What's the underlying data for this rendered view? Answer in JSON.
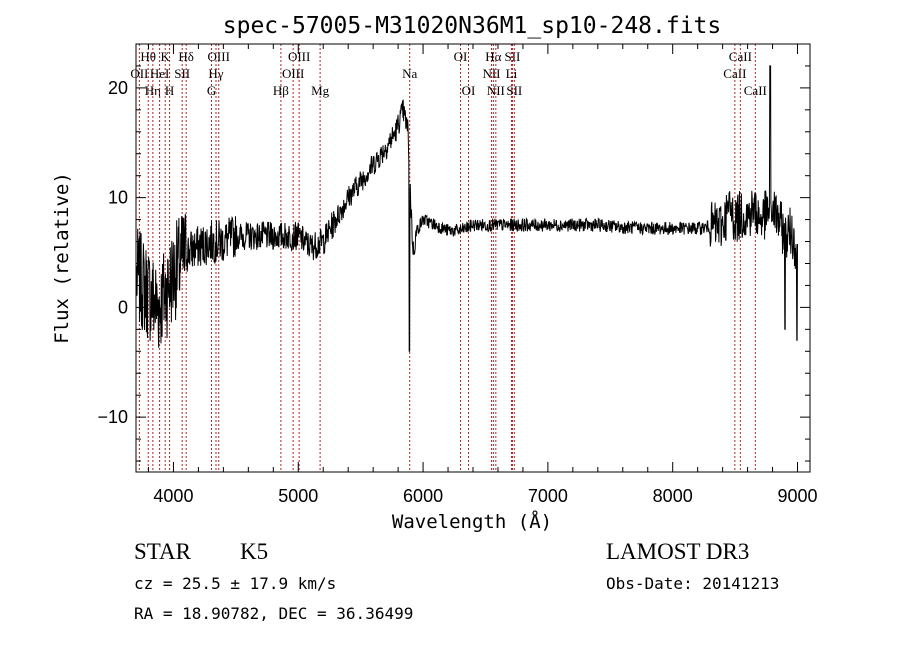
{
  "chart_data": {
    "type": "line",
    "title": "spec-57005-M31020N36M1_sp10-248.fits",
    "xlabel": "Wavelength (Å)",
    "ylabel": "Flux (relative)",
    "xlim": [
      3700,
      9100
    ],
    "ylim": [
      -15,
      24
    ],
    "x_ticks": [
      4000,
      5000,
      6000,
      7000,
      8000,
      9000
    ],
    "x_tick_labels": [
      "4000",
      "5000",
      "6000",
      "7000",
      "8000",
      "9000"
    ],
    "y_ticks": [
      -10,
      0,
      10,
      20
    ],
    "y_tick_labels": [
      "−10",
      "0",
      "10",
      "20"
    ],
    "grid": false,
    "spectrum_anchors": {
      "x": [
        3700,
        3760,
        3820,
        3880,
        3940,
        4000,
        4100,
        4200,
        4300,
        4400,
        4500,
        4600,
        4700,
        4800,
        4900,
        5000,
        5100,
        5200,
        5300,
        5400,
        5500,
        5600,
        5700,
        5780,
        5840,
        5880,
        5900,
        5920,
        5950,
        6000,
        6100,
        6200,
        6300,
        6400,
        6500,
        6600,
        6700,
        6800,
        7000,
        7200,
        7400,
        7600,
        7800,
        8000,
        8200,
        8400,
        8450,
        8500,
        8550,
        8600,
        8650,
        8700,
        8750,
        8800,
        8850,
        8900,
        8950,
        9000
      ],
      "y": [
        3,
        2,
        1,
        0,
        1.5,
        3,
        5,
        5.5,
        6,
        6,
        6.5,
        6.5,
        6.5,
        6.5,
        6.5,
        6.5,
        5.5,
        6,
        8,
        10,
        11.5,
        13,
        14.5,
        16,
        18,
        16,
        10,
        5,
        7,
        8,
        7.5,
        7,
        7,
        7.5,
        7.5,
        7.5,
        7.5,
        7.5,
        7.5,
        7.5,
        7.5,
        7.3,
        7.2,
        7.2,
        7.2,
        7.5,
        9,
        8,
        8.5,
        8.3,
        9,
        8,
        8.5,
        9,
        8,
        6.5,
        7,
        5
      ]
    },
    "spectral_lines": [
      {
        "label": "Hθ",
        "x": 3798,
        "row": 0
      },
      {
        "label": "OII",
        "x": 3727,
        "row": 1
      },
      {
        "label": "Hη",
        "x": 3835,
        "row": 2
      },
      {
        "label": "HeI",
        "x": 3889,
        "row": 1
      },
      {
        "label": "K",
        "x": 3934,
        "row": 0
      },
      {
        "label": "H",
        "x": 3969,
        "row": 2
      },
      {
        "label": "SII",
        "x": 4070,
        "row": 1
      },
      {
        "label": "Hδ",
        "x": 4102,
        "row": 0
      },
      {
        "label": "Hγ",
        "x": 4341,
        "row": 1
      },
      {
        "label": "G",
        "x": 4305,
        "row": 2
      },
      {
        "label": "OIII",
        "x": 4363,
        "row": 0
      },
      {
        "label": "Hβ",
        "x": 4861,
        "row": 2
      },
      {
        "label": "OIII",
        "x": 4959,
        "row": 1
      },
      {
        "label": "OIII",
        "x": 5007,
        "row": 0
      },
      {
        "label": "Mg",
        "x": 5175,
        "row": 2
      },
      {
        "label": "Na",
        "x": 5893,
        "row": 1
      },
      {
        "label": "OI",
        "x": 6300,
        "row": 0
      },
      {
        "label": "OI",
        "x": 6364,
        "row": 2
      },
      {
        "label": "NII",
        "x": 6548,
        "row": 1
      },
      {
        "label": "Hα",
        "x": 6563,
        "row": 0
      },
      {
        "label": "NII",
        "x": 6583,
        "row": 2
      },
      {
        "label": "SII",
        "x": 6716,
        "row": 0
      },
      {
        "label": "Li",
        "x": 6708,
        "row": 1
      },
      {
        "label": "SII",
        "x": 6731,
        "row": 2
      },
      {
        "label": "CaII",
        "x": 8498,
        "row": 1
      },
      {
        "label": "CaII",
        "x": 8542,
        "row": 0
      },
      {
        "label": "CaII",
        "x": 8662,
        "row": 2
      }
    ]
  },
  "info": {
    "class_label": "STAR",
    "subclass": "K5",
    "survey": "LAMOST DR3",
    "cz": "cz = 25.5 ± 17.9 km/s",
    "obs_date": "Obs-Date: 20141213",
    "coords": "RA =  18.90782, DEC =  36.36499"
  },
  "colors": {
    "line_marker": "#b22222",
    "spectrum": "#000000"
  }
}
